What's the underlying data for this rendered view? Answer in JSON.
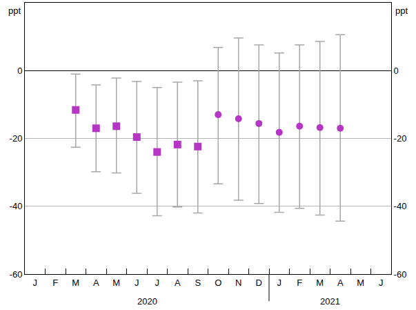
{
  "chart_data": {
    "type": "scatter",
    "y_unit": "ppt",
    "categories": [
      "J",
      "F",
      "M",
      "A",
      "M",
      "J",
      "J",
      "A",
      "S",
      "O",
      "N",
      "D",
      "J",
      "F",
      "M",
      "A",
      "M",
      "J"
    ],
    "category_groups": [
      {
        "label": "2020",
        "first": 0,
        "last": 11
      },
      {
        "label": "2021",
        "first": 12,
        "last": 17
      }
    ],
    "series": [
      {
        "marker": "square",
        "color": "#b536c4",
        "values": [
          null,
          null,
          -11.6,
          -17,
          -16.4,
          -19.6,
          -24,
          -21.8,
          -22.4,
          null,
          null,
          null,
          null,
          null,
          null,
          null,
          null,
          null
        ],
        "error_high": [
          null,
          null,
          -1,
          -4.2,
          -2.2,
          -3.2,
          -5,
          -3.4,
          -3,
          null,
          null,
          null,
          null,
          null,
          null,
          null,
          null,
          null
        ],
        "error_low": [
          null,
          null,
          -22.6,
          -29.8,
          -30.2,
          -36.2,
          -42.8,
          -40.2,
          -42,
          null,
          null,
          null,
          null,
          null,
          null,
          null,
          null,
          null
        ]
      },
      {
        "marker": "circle",
        "color": "#b536c4",
        "values": [
          null,
          null,
          null,
          null,
          null,
          null,
          null,
          null,
          null,
          -13,
          -14.2,
          -15.6,
          -18.2,
          -16.4,
          -16.8,
          -17,
          null,
          null
        ],
        "error_high": [
          null,
          null,
          null,
          null,
          null,
          null,
          null,
          null,
          null,
          6.8,
          9.6,
          7.6,
          5.2,
          7.6,
          8.6,
          10.6,
          null,
          null
        ],
        "error_low": [
          null,
          null,
          null,
          null,
          null,
          null,
          null,
          null,
          null,
          -33.4,
          -38.2,
          -39.2,
          -41.8,
          -40.6,
          -42.6,
          -44.4,
          null,
          null
        ]
      }
    ],
    "ylim": [
      -60,
      20
    ],
    "yticks": [
      -60,
      -40,
      -20,
      0
    ],
    "y2lim": [
      -60,
      20
    ],
    "y2ticks": [
      -60,
      -40,
      -20,
      0
    ],
    "grid": true
  }
}
